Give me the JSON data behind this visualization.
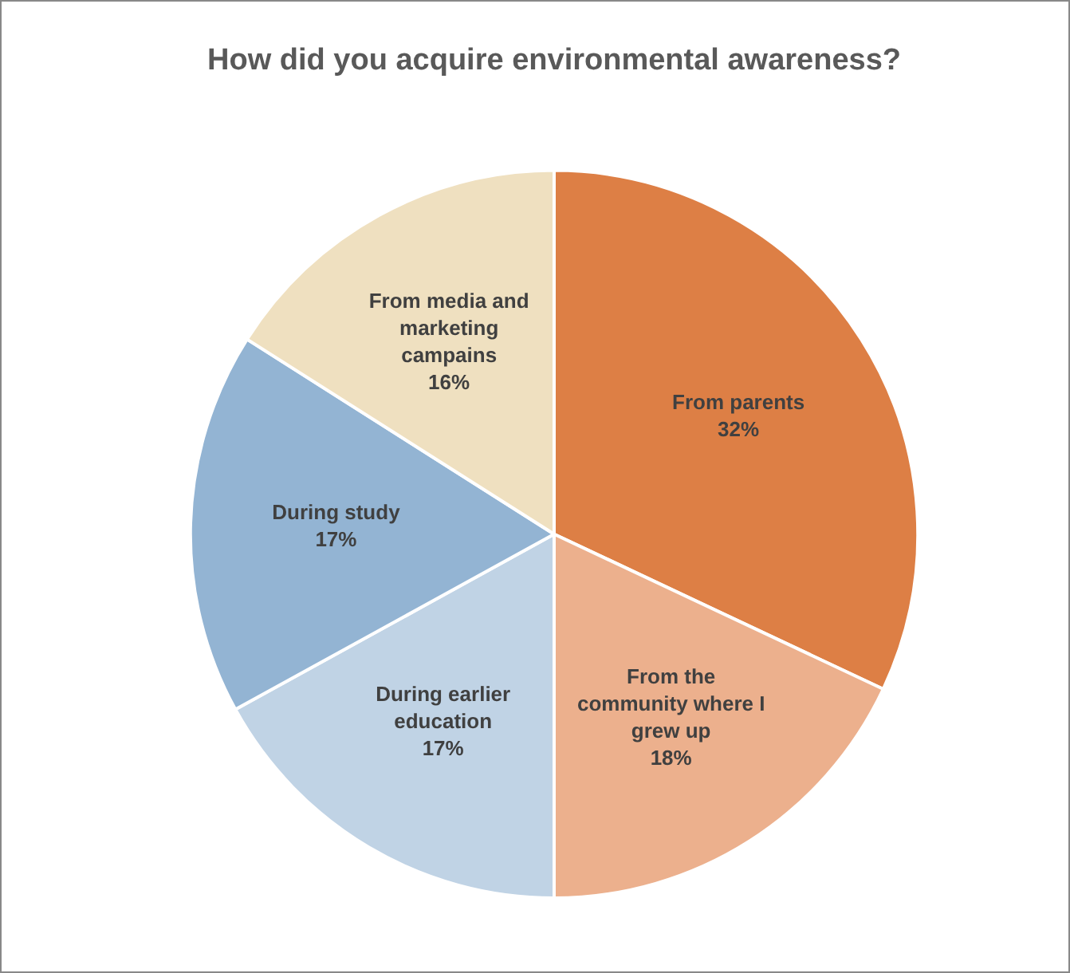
{
  "chart_data": {
    "type": "pie",
    "title": "How did you acquire environmental awareness?",
    "categories": [
      "From parents",
      "From the community where I grew up",
      "During earlier education",
      "During study",
      "From media and marketing campains"
    ],
    "values": [
      32,
      18,
      17,
      17,
      16
    ],
    "colors": [
      "#dd7f45",
      "#ecb08d",
      "#c0d3e5",
      "#93b4d3",
      "#efe0c0"
    ],
    "value_labels": [
      "32%",
      "18%",
      "17%",
      "17%",
      "16%"
    ],
    "legend": false
  }
}
